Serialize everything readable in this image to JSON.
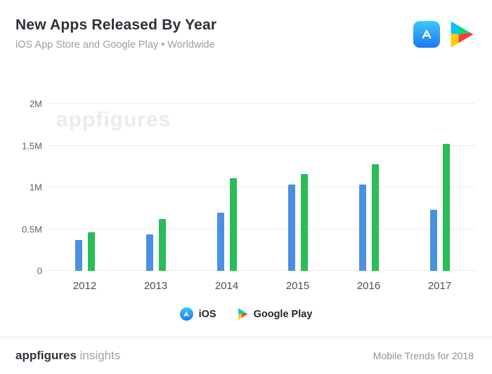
{
  "header": {
    "title": "New Apps Released By Year",
    "subtitle": "iOS App Store and Google Play • Worldwide",
    "icons": {
      "app_store_icon": "apple-app-store",
      "google_play_icon": "google-play"
    }
  },
  "watermark": "appfigures",
  "chart_data": {
    "type": "bar",
    "title": "New Apps Released By Year",
    "subtitle": "iOS App Store and Google Play • Worldwide",
    "categories": [
      "2012",
      "2013",
      "2014",
      "2015",
      "2016",
      "2017"
    ],
    "series": [
      {
        "name": "iOS",
        "color": "#4a90e2",
        "values": [
          0.37,
          0.44,
          0.7,
          1.03,
          1.03,
          0.73
        ]
      },
      {
        "name": "Google Play",
        "color": "#2abd57",
        "values": [
          0.46,
          0.62,
          1.11,
          1.16,
          1.28,
          1.52
        ]
      }
    ],
    "unit": "millions of apps",
    "xlabel": "",
    "ylabel": "",
    "ylim": [
      0,
      2
    ],
    "y_ticks": [
      {
        "label": "0",
        "value": 0
      },
      {
        "label": "0.5M",
        "value": 0.5
      },
      {
        "label": "1M",
        "value": 1
      },
      {
        "label": "1.5M",
        "value": 1.5
      },
      {
        "label": "2M",
        "value": 2
      }
    ],
    "grid": true,
    "legend_position": "bottom"
  },
  "legend": {
    "items": [
      {
        "label": "iOS"
      },
      {
        "label": "Google Play"
      }
    ]
  },
  "footer": {
    "brand_bold": "appfigures",
    "brand_light": "insights",
    "right_text": "Mobile Trends for 2018"
  }
}
